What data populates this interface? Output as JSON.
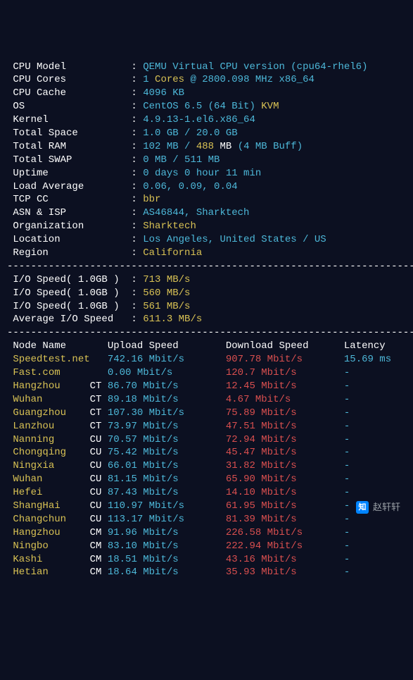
{
  "colors": {
    "background": "#0c1021",
    "white": "#ffffff",
    "cyan": "#4db8d9",
    "yellow": "#d9c254",
    "red": "#d94f4f"
  },
  "info": [
    {
      "label": "CPU Model",
      "segments": [
        {
          "t": "QEMU Virtual CPU version (cpu64-rhel6)",
          "c": "cyan"
        }
      ]
    },
    {
      "label": "CPU Cores",
      "segments": [
        {
          "t": "1",
          "c": "cyan"
        },
        {
          "t": " Cores ",
          "c": "yellow"
        },
        {
          "t": "@ 2800.098 MHz x86_64",
          "c": "cyan"
        }
      ]
    },
    {
      "label": "CPU Cache",
      "segments": [
        {
          "t": "4096 KB",
          "c": "cyan"
        }
      ]
    },
    {
      "label": "OS",
      "segments": [
        {
          "t": "CentOS 6.5 (64 Bit)",
          "c": "cyan"
        },
        {
          "t": " KVM",
          "c": "yellow"
        }
      ]
    },
    {
      "label": "Kernel",
      "segments": [
        {
          "t": "4.9.13-1.el6.x86_64",
          "c": "cyan"
        }
      ]
    },
    {
      "label": "Total Space",
      "segments": [
        {
          "t": "1.0 GB / 20.0 GB",
          "c": "cyan"
        }
      ]
    },
    {
      "label": "Total RAM",
      "segments": [
        {
          "t": "102 MB / ",
          "c": "cyan"
        },
        {
          "t": "488",
          "c": "yellow"
        },
        {
          "t": " MB ",
          "c": "white"
        },
        {
          "t": "(4 MB Buff)",
          "c": "cyan"
        }
      ]
    },
    {
      "label": "Total SWAP",
      "segments": [
        {
          "t": "0 MB / 511 MB",
          "c": "cyan"
        }
      ]
    },
    {
      "label": "Uptime",
      "segments": [
        {
          "t": "0 days 0 hour 11 min",
          "c": "cyan"
        }
      ]
    },
    {
      "label": "Load Average",
      "segments": [
        {
          "t": "0.06, 0.09, 0.04",
          "c": "cyan"
        }
      ]
    },
    {
      "label": "TCP CC",
      "segments": [
        {
          "t": "bbr",
          "c": "yellow"
        }
      ]
    },
    {
      "label": "ASN & ISP",
      "segments": [
        {
          "t": "AS46844, Sharktech",
          "c": "cyan"
        }
      ]
    },
    {
      "label": "Organization",
      "segments": [
        {
          "t": "Sharktech",
          "c": "yellow"
        }
      ]
    },
    {
      "label": "Location",
      "segments": [
        {
          "t": "Los Angeles, United States / US",
          "c": "cyan"
        }
      ]
    },
    {
      "label": "Region",
      "segments": [
        {
          "t": "California",
          "c": "yellow"
        }
      ]
    }
  ],
  "io": [
    {
      "label": "I/O Speed( 1.0GB )",
      "value": "713 MB/s"
    },
    {
      "label": "I/O Speed( 1.0GB )",
      "value": "560 MB/s"
    },
    {
      "label": "I/O Speed( 1.0GB )",
      "value": "561 MB/s"
    },
    {
      "label": "Average I/O Speed",
      "value": "611.3 MB/s"
    }
  ],
  "headers": {
    "node": "Node Name",
    "up": "Upload Speed",
    "down": "Download Speed",
    "lat": "Latency"
  },
  "nodes": [
    {
      "name": "Speedtest.net",
      "tag": "",
      "up": "742.16 Mbit/s",
      "down": "907.78 Mbit/s",
      "lat": "15.69 ms"
    },
    {
      "name": "Fast.com",
      "tag": "",
      "up": "0.00 Mbit/s",
      "down": "120.7 Mbit/s",
      "lat": "-"
    },
    {
      "name": "Hangzhou",
      "tag": "CT",
      "up": "86.70 Mbit/s",
      "down": "12.45 Mbit/s",
      "lat": "-"
    },
    {
      "name": "Wuhan",
      "tag": "CT",
      "up": "89.18 Mbit/s",
      "down": "4.67 Mbit/s",
      "lat": "-"
    },
    {
      "name": "Guangzhou",
      "tag": "CT",
      "up": "107.30 Mbit/s",
      "down": "75.89 Mbit/s",
      "lat": "-"
    },
    {
      "name": "Lanzhou",
      "tag": "CT",
      "up": "73.97 Mbit/s",
      "down": "47.51 Mbit/s",
      "lat": "-"
    },
    {
      "name": "Nanning",
      "tag": "CU",
      "up": "70.57 Mbit/s",
      "down": "72.94 Mbit/s",
      "lat": "-"
    },
    {
      "name": "Chongqing",
      "tag": "CU",
      "up": "75.42 Mbit/s",
      "down": "45.47 Mbit/s",
      "lat": "-"
    },
    {
      "name": "Ningxia",
      "tag": "CU",
      "up": "66.01 Mbit/s",
      "down": "31.82 Mbit/s",
      "lat": "-"
    },
    {
      "name": "Wuhan",
      "tag": "CU",
      "up": "81.15 Mbit/s",
      "down": "65.90 Mbit/s",
      "lat": "-"
    },
    {
      "name": "Hefei",
      "tag": "CU",
      "up": "87.43 Mbit/s",
      "down": "14.10 Mbit/s",
      "lat": "-"
    },
    {
      "name": "ShangHai",
      "tag": "CU",
      "up": "110.97 Mbit/s",
      "down": "61.95 Mbit/s",
      "lat": "-"
    },
    {
      "name": "Changchun",
      "tag": "CU",
      "up": "113.17 Mbit/s",
      "down": "81.39 Mbit/s",
      "lat": "-"
    },
    {
      "name": "Hangzhou",
      "tag": "CM",
      "up": "91.96 Mbit/s",
      "down": "226.58 Mbit/s",
      "lat": "-"
    },
    {
      "name": "Ningbo",
      "tag": "CM",
      "up": "83.10 Mbit/s",
      "down": "222.94 Mbit/s",
      "lat": "-"
    },
    {
      "name": "Kashi",
      "tag": "CM",
      "up": "18.51 Mbit/s",
      "down": "43.16 Mbit/s",
      "lat": "-"
    },
    {
      "name": "Hetian",
      "tag": "CM",
      "up": "18.64 Mbit/s",
      "down": "35.93 Mbit/s",
      "lat": "-"
    }
  ],
  "divider": "----------------------------------------------------------------------",
  "watermark": {
    "icon": "知",
    "text": "赵轩轩"
  }
}
